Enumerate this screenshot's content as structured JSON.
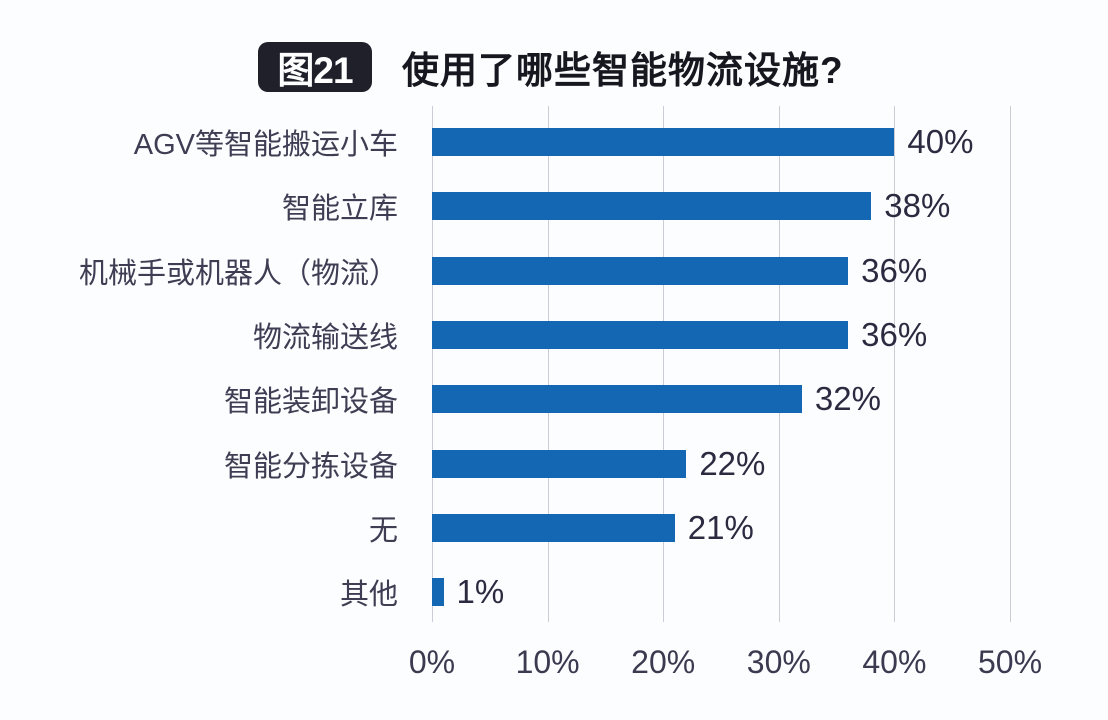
{
  "title": {
    "badge": "图21",
    "text": "使用了哪些智能物流设施?"
  },
  "chart_data": {
    "type": "bar",
    "orientation": "horizontal",
    "title": "使用了哪些智能物流设施?",
    "categories": [
      "AGV等智能搬运小车",
      "智能立库",
      "机械手或机器人（物流）",
      "物流输送线",
      "智能装卸设备",
      "智能分拣设备",
      "无",
      "其他"
    ],
    "values": [
      40,
      38,
      36,
      36,
      32,
      22,
      21,
      1
    ],
    "value_labels": [
      "40%",
      "38%",
      "36%",
      "36%",
      "32%",
      "22%",
      "21%",
      "1%"
    ],
    "x_ticks": [
      "0%",
      "10%",
      "20%",
      "30%",
      "40%",
      "50%"
    ],
    "x_tick_values": [
      0,
      10,
      20,
      30,
      40,
      50
    ],
    "xlim": [
      0,
      50
    ],
    "xlabel": "",
    "ylabel": "",
    "grid": "vertical",
    "legend": "none",
    "bar_color": "#1468b3",
    "gridline_color": "#c9cdd5",
    "label_color": "#3f3d53",
    "value_color": "#2c2a40",
    "tick_color": "#3c3a50",
    "background": "#fcfdfe"
  }
}
